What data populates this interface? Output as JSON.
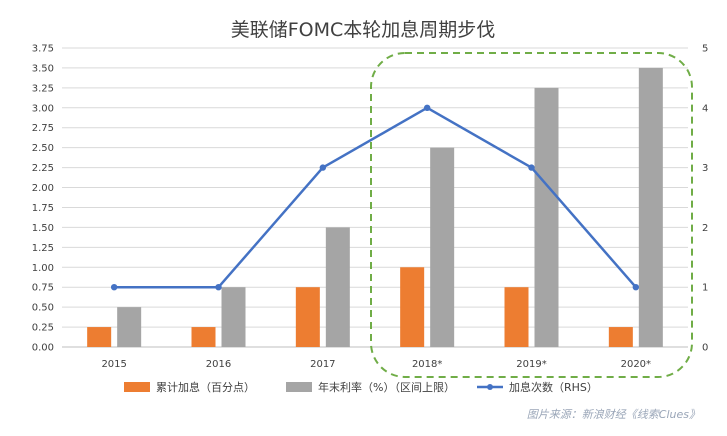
{
  "chart_data": {
    "type": "bar",
    "title": "美联储FOMC本轮加息周期步伐",
    "categories": [
      "2015",
      "2016",
      "2017",
      "2018*",
      "2019*",
      "2020*"
    ],
    "series": [
      {
        "name": "累计加息（百分点）",
        "type": "bar",
        "axis": "left",
        "color": "#ED7D31",
        "values": [
          0.25,
          0.25,
          0.75,
          1.0,
          0.75,
          0.25
        ]
      },
      {
        "name": "年末利率（%）（区间上限）",
        "type": "bar",
        "axis": "left",
        "color": "#A5A5A5",
        "values": [
          0.5,
          0.75,
          1.5,
          2.5,
          3.25,
          3.5
        ]
      },
      {
        "name": "加息次数（RHS）",
        "type": "line",
        "axis": "right",
        "color": "#4472C4",
        "values": [
          1,
          1,
          3,
          4,
          3,
          1
        ]
      }
    ],
    "left_axis": {
      "min": 0,
      "max": 3.75,
      "step": 0.25,
      "tick_labels": [
        "0.00",
        "0.25",
        "0.50",
        "0.75",
        "1.00",
        "1.25",
        "1.50",
        "1.75",
        "2.00",
        "2.25",
        "2.50",
        "2.75",
        "3.00",
        "3.25",
        "3.50",
        "3.75"
      ]
    },
    "right_axis": {
      "min": 0,
      "max": 5,
      "step": 1,
      "tick_labels": [
        "0",
        "1",
        "2",
        "3",
        "4",
        "5"
      ]
    },
    "grid": true,
    "legend": "bottom",
    "highlight": {
      "categories": [
        "2018*",
        "2019*",
        "2020*"
      ],
      "style": "dashed rounded box",
      "color": "#70AD47"
    }
  },
  "source_note": "图片来源：新浪财经《线索Clues》"
}
